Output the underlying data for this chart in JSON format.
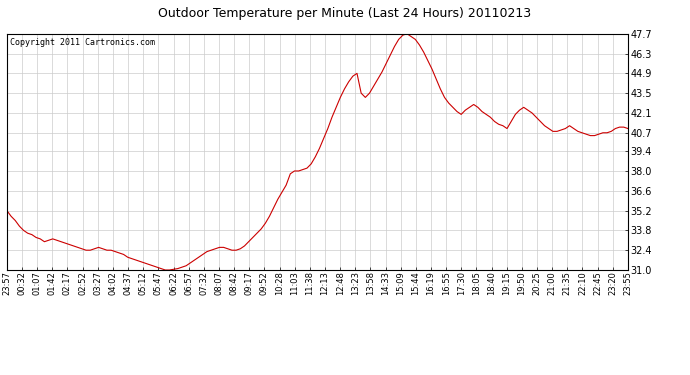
{
  "title": "Outdoor Temperature per Minute (Last 24 Hours) 20110213",
  "copyright_text": "Copyright 2011 Cartronics.com",
  "line_color": "#cc0000",
  "background_color": "#ffffff",
  "grid_color": "#cccccc",
  "ylim": [
    31.0,
    47.7
  ],
  "yticks": [
    31.0,
    32.4,
    33.8,
    35.2,
    36.6,
    38.0,
    39.4,
    40.7,
    42.1,
    43.5,
    44.9,
    46.3,
    47.7
  ],
  "xtick_labels": [
    "23:57",
    "00:32",
    "01:07",
    "01:42",
    "02:17",
    "02:52",
    "03:27",
    "04:02",
    "04:37",
    "05:12",
    "05:47",
    "06:22",
    "06:57",
    "07:32",
    "08:07",
    "08:42",
    "09:17",
    "09:52",
    "10:28",
    "11:03",
    "11:38",
    "12:13",
    "12:48",
    "13:23",
    "13:58",
    "14:33",
    "15:09",
    "15:44",
    "16:19",
    "16:55",
    "17:30",
    "18:05",
    "18:40",
    "19:15",
    "19:50",
    "20:25",
    "21:00",
    "21:35",
    "22:10",
    "22:45",
    "23:20",
    "23:55"
  ],
  "data_points": [
    [
      0,
      35.2
    ],
    [
      5,
      34.8
    ],
    [
      10,
      34.5
    ],
    [
      15,
      34.1
    ],
    [
      20,
      33.8
    ],
    [
      25,
      33.6
    ],
    [
      30,
      33.5
    ],
    [
      35,
      33.3
    ],
    [
      40,
      33.2
    ],
    [
      45,
      33.0
    ],
    [
      50,
      33.1
    ],
    [
      55,
      33.2
    ],
    [
      60,
      33.1
    ],
    [
      65,
      33.0
    ],
    [
      70,
      32.9
    ],
    [
      75,
      32.8
    ],
    [
      80,
      32.7
    ],
    [
      85,
      32.6
    ],
    [
      90,
      32.5
    ],
    [
      95,
      32.4
    ],
    [
      100,
      32.4
    ],
    [
      105,
      32.5
    ],
    [
      110,
      32.6
    ],
    [
      115,
      32.5
    ],
    [
      120,
      32.4
    ],
    [
      125,
      32.4
    ],
    [
      130,
      32.3
    ],
    [
      135,
      32.2
    ],
    [
      140,
      32.1
    ],
    [
      145,
      31.9
    ],
    [
      150,
      31.8
    ],
    [
      155,
      31.7
    ],
    [
      160,
      31.6
    ],
    [
      165,
      31.5
    ],
    [
      170,
      31.4
    ],
    [
      175,
      31.3
    ],
    [
      180,
      31.2
    ],
    [
      185,
      31.1
    ],
    [
      190,
      31.0
    ],
    [
      195,
      31.0
    ],
    [
      200,
      31.05
    ],
    [
      205,
      31.1
    ],
    [
      210,
      31.2
    ],
    [
      215,
      31.3
    ],
    [
      220,
      31.5
    ],
    [
      225,
      31.7
    ],
    [
      230,
      31.9
    ],
    [
      235,
      32.1
    ],
    [
      240,
      32.3
    ],
    [
      245,
      32.4
    ],
    [
      250,
      32.5
    ],
    [
      255,
      32.6
    ],
    [
      260,
      32.6
    ],
    [
      265,
      32.5
    ],
    [
      270,
      32.4
    ],
    [
      275,
      32.4
    ],
    [
      280,
      32.5
    ],
    [
      285,
      32.7
    ],
    [
      290,
      33.0
    ],
    [
      295,
      33.3
    ],
    [
      300,
      33.6
    ],
    [
      305,
      33.9
    ],
    [
      310,
      34.3
    ],
    [
      315,
      34.8
    ],
    [
      320,
      35.4
    ],
    [
      325,
      36.0
    ],
    [
      330,
      36.5
    ],
    [
      335,
      37.0
    ],
    [
      340,
      37.8
    ],
    [
      345,
      38.0
    ],
    [
      350,
      38.0
    ],
    [
      355,
      38.1
    ],
    [
      360,
      38.2
    ],
    [
      365,
      38.5
    ],
    [
      370,
      39.0
    ],
    [
      375,
      39.6
    ],
    [
      380,
      40.3
    ],
    [
      385,
      41.0
    ],
    [
      390,
      41.8
    ],
    [
      395,
      42.5
    ],
    [
      400,
      43.2
    ],
    [
      405,
      43.8
    ],
    [
      410,
      44.3
    ],
    [
      415,
      44.7
    ],
    [
      420,
      44.9
    ],
    [
      425,
      43.5
    ],
    [
      430,
      43.2
    ],
    [
      435,
      43.5
    ],
    [
      440,
      44.0
    ],
    [
      445,
      44.5
    ],
    [
      450,
      45.0
    ],
    [
      455,
      45.6
    ],
    [
      460,
      46.2
    ],
    [
      465,
      46.8
    ],
    [
      470,
      47.3
    ],
    [
      475,
      47.6
    ],
    [
      480,
      47.7
    ],
    [
      485,
      47.5
    ],
    [
      490,
      47.3
    ],
    [
      495,
      46.9
    ],
    [
      500,
      46.4
    ],
    [
      505,
      45.8
    ],
    [
      510,
      45.2
    ],
    [
      515,
      44.5
    ],
    [
      520,
      43.8
    ],
    [
      525,
      43.2
    ],
    [
      530,
      42.8
    ],
    [
      535,
      42.5
    ],
    [
      540,
      42.2
    ],
    [
      545,
      42.0
    ],
    [
      550,
      42.3
    ],
    [
      555,
      42.5
    ],
    [
      560,
      42.7
    ],
    [
      565,
      42.5
    ],
    [
      570,
      42.2
    ],
    [
      575,
      42.0
    ],
    [
      580,
      41.8
    ],
    [
      585,
      41.5
    ],
    [
      590,
      41.3
    ],
    [
      595,
      41.2
    ],
    [
      600,
      41.0
    ],
    [
      605,
      41.5
    ],
    [
      610,
      42.0
    ],
    [
      615,
      42.3
    ],
    [
      620,
      42.5
    ],
    [
      625,
      42.3
    ],
    [
      630,
      42.1
    ],
    [
      635,
      41.8
    ],
    [
      640,
      41.5
    ],
    [
      645,
      41.2
    ],
    [
      650,
      41.0
    ],
    [
      655,
      40.8
    ],
    [
      660,
      40.8
    ],
    [
      665,
      40.9
    ],
    [
      670,
      41.0
    ],
    [
      675,
      41.2
    ],
    [
      680,
      41.0
    ],
    [
      685,
      40.8
    ],
    [
      690,
      40.7
    ],
    [
      695,
      40.6
    ],
    [
      700,
      40.5
    ],
    [
      705,
      40.5
    ],
    [
      710,
      40.6
    ],
    [
      715,
      40.7
    ],
    [
      720,
      40.7
    ],
    [
      725,
      40.8
    ],
    [
      730,
      41.0
    ],
    [
      735,
      41.1
    ],
    [
      740,
      41.1
    ],
    [
      745,
      41.0
    ]
  ],
  "figsize": [
    6.9,
    3.75
  ],
  "dpi": 100
}
